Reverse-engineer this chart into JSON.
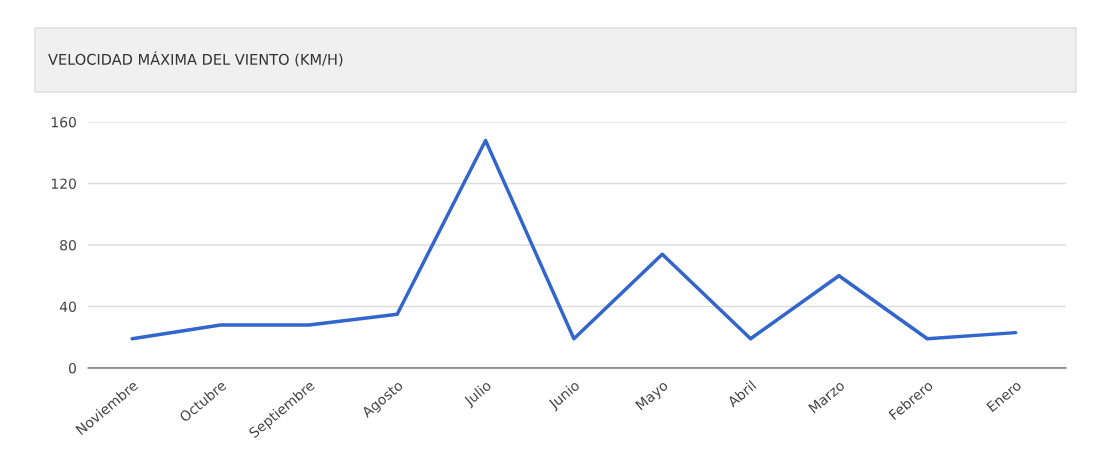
{
  "chart_data": {
    "type": "line",
    "title": "VELOCIDAD MÁXIMA DEL VIENTO (KM/H)",
    "categories": [
      "Noviembre",
      "Octubre",
      "Septiembre",
      "Agosto",
      "Julio",
      "Junio",
      "Mayo",
      "Abril",
      "Marzo",
      "Febrero",
      "Enero"
    ],
    "series": [
      {
        "color": "#3366cc",
        "values": [
          19,
          28,
          28,
          35,
          148,
          19,
          74,
          19,
          60,
          19,
          23
        ]
      }
    ],
    "ylim": [
      0,
      160
    ],
    "yticks": [
      0,
      40,
      80,
      120,
      160
    ],
    "grid": "y",
    "marker": "none",
    "line_style": "solid"
  }
}
